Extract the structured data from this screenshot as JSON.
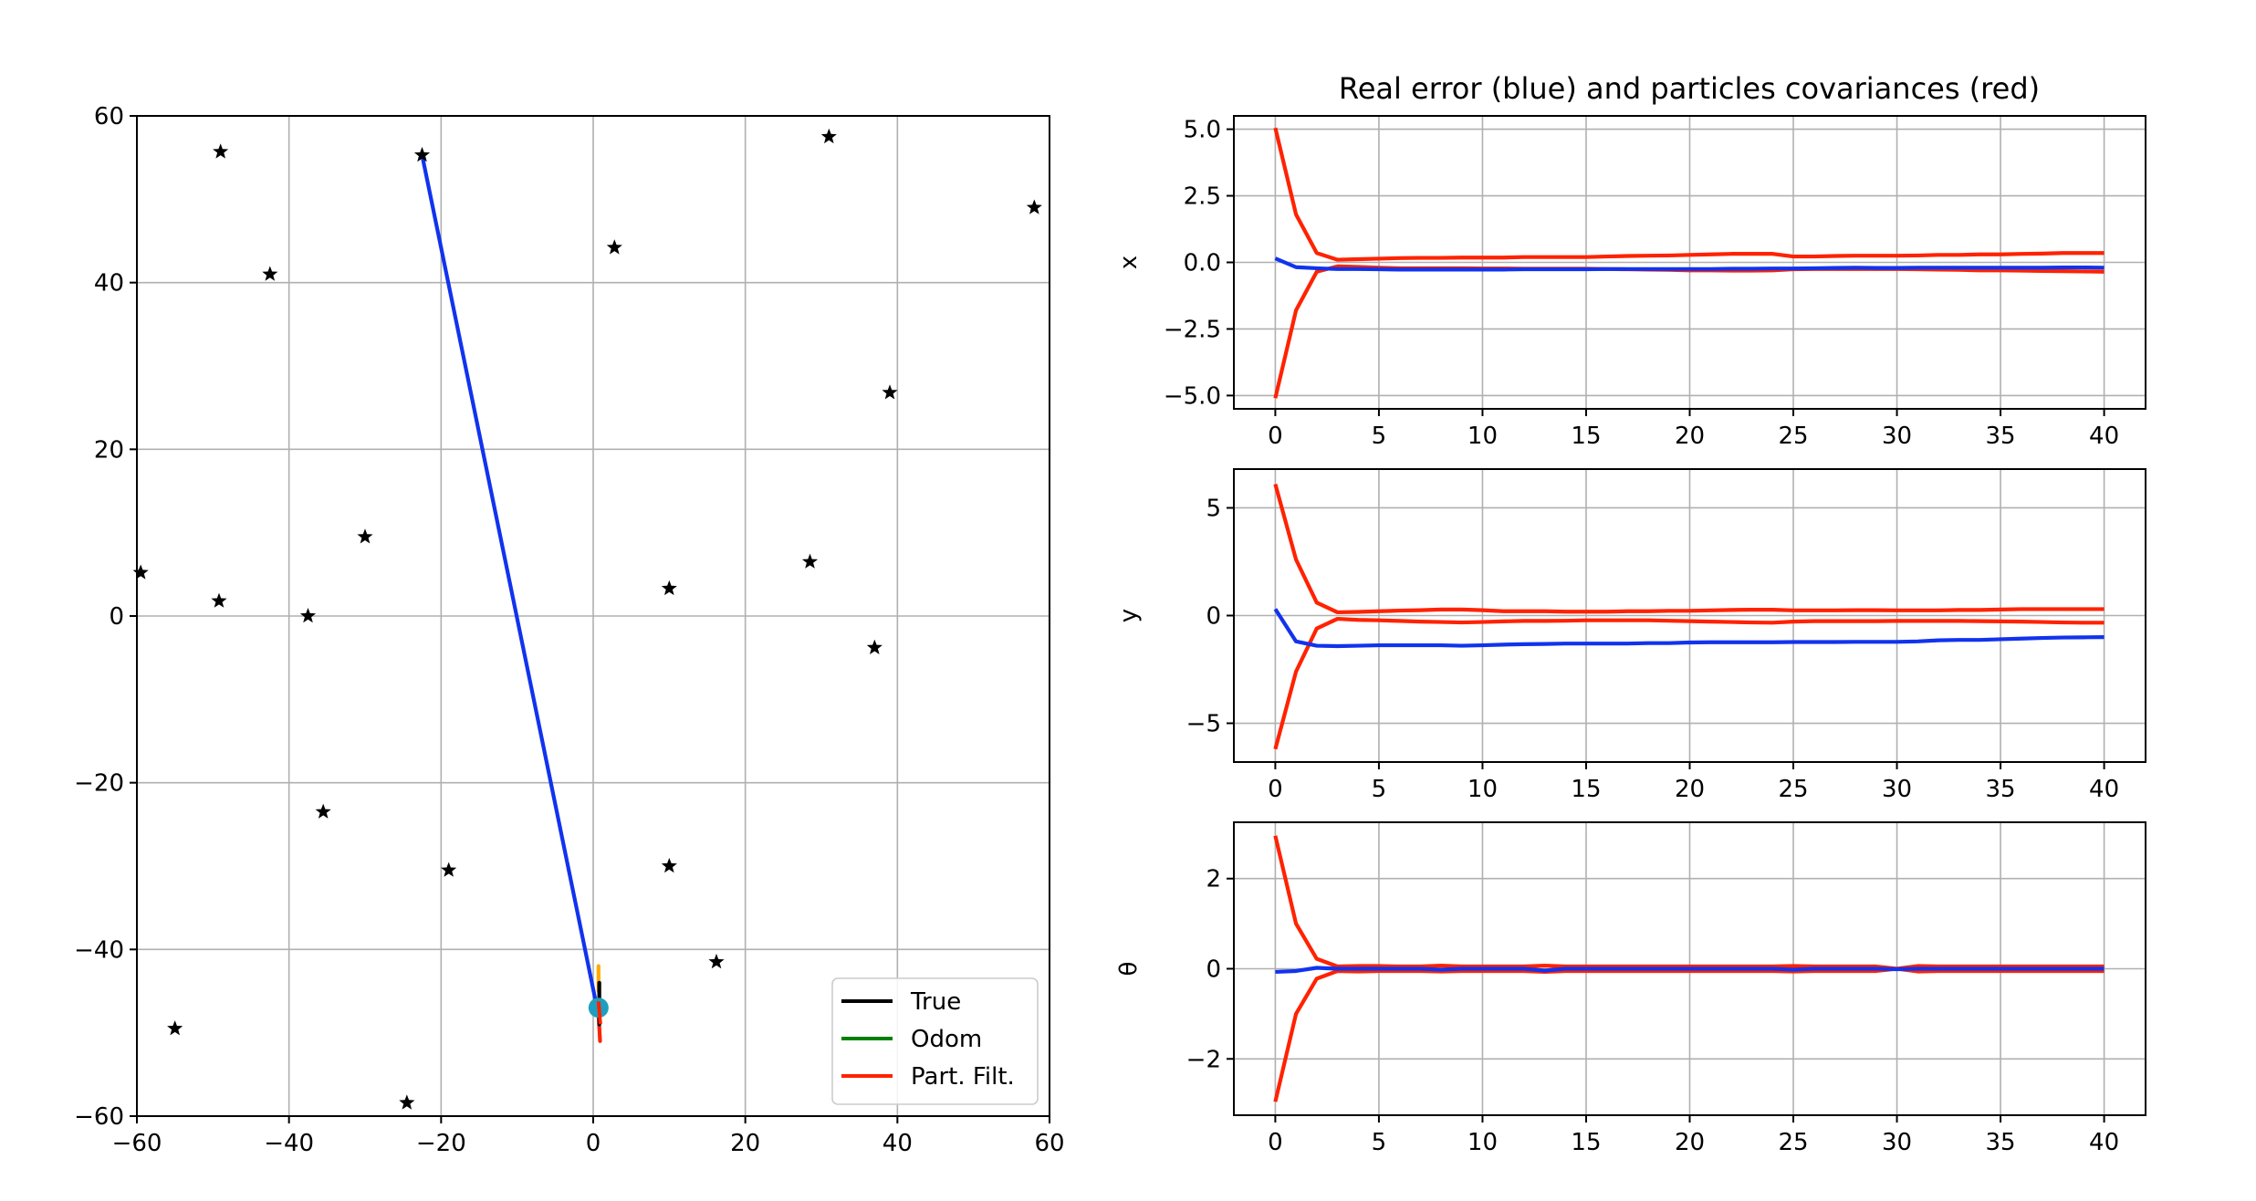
{
  "chart_data": [
    {
      "type": "line",
      "panel": "map",
      "title": "",
      "xlabel": "",
      "ylabel": "",
      "xlim": [
        -60,
        60
      ],
      "ylim": [
        -60,
        60
      ],
      "xticks": [
        -60,
        -40,
        -20,
        0,
        20,
        40,
        60
      ],
      "yticks": [
        -60,
        -40,
        -20,
        0,
        20,
        40,
        60
      ],
      "grid": true,
      "legend": {
        "placement": "lower-right",
        "entries": [
          {
            "label": "True",
            "color": "#000000"
          },
          {
            "label": "Odom",
            "color": "#008000"
          },
          {
            "label": "Part. Filt.",
            "color": "#ff2200"
          }
        ]
      },
      "landmarks": {
        "marker": "star",
        "color": "#000000",
        "points": [
          [
            -49,
            55.7
          ],
          [
            -22.5,
            55.3
          ],
          [
            31,
            57.5
          ],
          [
            58,
            49
          ],
          [
            -42.5,
            41
          ],
          [
            2.8,
            44.2
          ],
          [
            39,
            26.8
          ],
          [
            -30,
            9.5
          ],
          [
            -59.5,
            5.2
          ],
          [
            -49.2,
            1.8
          ],
          [
            -37.5,
            0
          ],
          [
            10,
            3.3
          ],
          [
            28.5,
            6.5
          ],
          [
            37,
            -3.8
          ],
          [
            -35.5,
            -23.5
          ],
          [
            -19,
            -30.5
          ],
          [
            10,
            -30
          ],
          [
            16.2,
            -41.5
          ],
          [
            -55,
            -49.5
          ],
          [
            -24.5,
            -58.4
          ]
        ]
      },
      "series": [
        {
          "color": "#1133ee",
          "points": [
            [
              -22.5,
              55.3
            ],
            [
              0.5,
              -47
            ]
          ]
        },
        {
          "color": "#ffaa00",
          "points": [
            [
              0.7,
              -42
            ],
            [
              0.7,
              -45
            ]
          ]
        },
        {
          "color": "#ff2200",
          "points": [
            [
              0.6,
              -46
            ],
            [
              0.9,
              -51
            ]
          ]
        },
        {
          "color": "#000000",
          "points": [
            [
              0.8,
              -44
            ],
            [
              0.8,
              -49
            ]
          ]
        }
      ],
      "robot": {
        "x": 0.7,
        "y": -47,
        "color": "#1f9fbf"
      }
    },
    {
      "type": "line",
      "panel": "x",
      "title": "Real error (blue) and particles covariances (red)",
      "xlabel": "",
      "ylabel": "x",
      "xlim": [
        -2,
        42
      ],
      "ylim": [
        -5.5,
        5.5
      ],
      "xticks": [
        0,
        5,
        10,
        15,
        20,
        25,
        30,
        35,
        40
      ],
      "yticks": [
        -5.0,
        -2.5,
        0.0,
        2.5,
        5.0
      ],
      "ytick_labels": [
        "−5.0",
        "−2.5",
        "0.0",
        "2.5",
        "5.0"
      ],
      "grid": true,
      "x": [
        0,
        1,
        2,
        3,
        4,
        5,
        6,
        7,
        8,
        9,
        10,
        11,
        12,
        13,
        14,
        15,
        16,
        17,
        18,
        19,
        20,
        21,
        22,
        23,
        24,
        25,
        26,
        27,
        28,
        29,
        30,
        31,
        32,
        33,
        34,
        35,
        36,
        37,
        38,
        39,
        40
      ],
      "series": [
        {
          "color": "#ff2200",
          "values": [
            5.05,
            1.8,
            0.35,
            0.1,
            0.12,
            0.14,
            0.16,
            0.17,
            0.17,
            0.18,
            0.18,
            0.18,
            0.2,
            0.2,
            0.2,
            0.2,
            0.22,
            0.24,
            0.25,
            0.26,
            0.28,
            0.3,
            0.32,
            0.32,
            0.32,
            0.22,
            0.22,
            0.24,
            0.25,
            0.25,
            0.25,
            0.26,
            0.28,
            0.28,
            0.3,
            0.3,
            0.32,
            0.33,
            0.35,
            0.35,
            0.35
          ]
        },
        {
          "color": "#ff2200",
          "values": [
            -5.1,
            -1.8,
            -0.35,
            -0.15,
            -0.17,
            -0.2,
            -0.22,
            -0.22,
            -0.22,
            -0.22,
            -0.23,
            -0.23,
            -0.24,
            -0.24,
            -0.24,
            -0.24,
            -0.25,
            -0.26,
            -0.27,
            -0.28,
            -0.3,
            -0.3,
            -0.31,
            -0.31,
            -0.3,
            -0.26,
            -0.25,
            -0.25,
            -0.25,
            -0.25,
            -0.25,
            -0.26,
            -0.27,
            -0.28,
            -0.3,
            -0.3,
            -0.31,
            -0.32,
            -0.33,
            -0.34,
            -0.35
          ]
        },
        {
          "color": "#1133ee",
          "values": [
            0.15,
            -0.18,
            -0.22,
            -0.25,
            -0.25,
            -0.26,
            -0.27,
            -0.27,
            -0.27,
            -0.27,
            -0.27,
            -0.27,
            -0.26,
            -0.26,
            -0.26,
            -0.26,
            -0.25,
            -0.25,
            -0.25,
            -0.25,
            -0.25,
            -0.25,
            -0.24,
            -0.24,
            -0.23,
            -0.23,
            -0.22,
            -0.21,
            -0.2,
            -0.21,
            -0.21,
            -0.2,
            -0.2,
            -0.2,
            -0.2,
            -0.2,
            -0.2,
            -0.2,
            -0.19,
            -0.19,
            -0.2
          ]
        }
      ]
    },
    {
      "type": "line",
      "panel": "y",
      "title": "",
      "xlabel": "",
      "ylabel": "y",
      "xlim": [
        -2,
        42
      ],
      "ylim": [
        -6.8,
        6.8
      ],
      "xticks": [
        0,
        5,
        10,
        15,
        20,
        25,
        30,
        35,
        40
      ],
      "yticks": [
        -5,
        0,
        5
      ],
      "ytick_labels": [
        "−5",
        "0",
        "5"
      ],
      "grid": true,
      "x": [
        0,
        1,
        2,
        3,
        4,
        5,
        6,
        7,
        8,
        9,
        10,
        11,
        12,
        13,
        14,
        15,
        16,
        17,
        18,
        19,
        20,
        21,
        22,
        23,
        24,
        25,
        26,
        27,
        28,
        29,
        30,
        31,
        32,
        33,
        34,
        35,
        36,
        37,
        38,
        39,
        40
      ],
      "series": [
        {
          "color": "#ff2200",
          "values": [
            6.1,
            2.6,
            0.6,
            0.15,
            0.17,
            0.2,
            0.23,
            0.25,
            0.28,
            0.28,
            0.25,
            0.2,
            0.2,
            0.2,
            0.18,
            0.18,
            0.18,
            0.2,
            0.2,
            0.22,
            0.22,
            0.24,
            0.26,
            0.27,
            0.27,
            0.24,
            0.24,
            0.24,
            0.25,
            0.25,
            0.24,
            0.24,
            0.24,
            0.26,
            0.26,
            0.28,
            0.3,
            0.3,
            0.3,
            0.3,
            0.3
          ]
        },
        {
          "color": "#ff2200",
          "values": [
            -6.2,
            -2.6,
            -0.6,
            -0.15,
            -0.2,
            -0.22,
            -0.25,
            -0.28,
            -0.3,
            -0.32,
            -0.3,
            -0.27,
            -0.25,
            -0.25,
            -0.24,
            -0.22,
            -0.22,
            -0.22,
            -0.22,
            -0.24,
            -0.26,
            -0.28,
            -0.3,
            -0.32,
            -0.33,
            -0.28,
            -0.26,
            -0.26,
            -0.26,
            -0.26,
            -0.25,
            -0.25,
            -0.25,
            -0.25,
            -0.26,
            -0.27,
            -0.28,
            -0.3,
            -0.32,
            -0.33,
            -0.33
          ]
        },
        {
          "color": "#1133ee",
          "values": [
            0.3,
            -1.2,
            -1.4,
            -1.42,
            -1.4,
            -1.38,
            -1.38,
            -1.38,
            -1.38,
            -1.4,
            -1.38,
            -1.35,
            -1.33,
            -1.32,
            -1.3,
            -1.3,
            -1.3,
            -1.3,
            -1.28,
            -1.28,
            -1.25,
            -1.24,
            -1.24,
            -1.24,
            -1.24,
            -1.23,
            -1.23,
            -1.23,
            -1.22,
            -1.22,
            -1.22,
            -1.2,
            -1.15,
            -1.13,
            -1.13,
            -1.1,
            -1.07,
            -1.04,
            -1.02,
            -1.01,
            -1.0
          ]
        }
      ]
    },
    {
      "type": "line",
      "panel": "theta",
      "title": "",
      "xlabel": "",
      "ylabel": "θ",
      "xlim": [
        -2,
        42
      ],
      "ylim": [
        -3.25,
        3.25
      ],
      "xticks": [
        0,
        5,
        10,
        15,
        20,
        25,
        30,
        35,
        40
      ],
      "yticks": [
        -2,
        0,
        2
      ],
      "ytick_labels": [
        "−2",
        "0",
        "2"
      ],
      "grid": true,
      "x": [
        0,
        1,
        2,
        3,
        4,
        5,
        6,
        7,
        8,
        9,
        10,
        11,
        12,
        13,
        14,
        15,
        16,
        17,
        18,
        19,
        20,
        21,
        22,
        23,
        24,
        25,
        26,
        27,
        28,
        29,
        30,
        31,
        32,
        33,
        34,
        35,
        36,
        37,
        38,
        39,
        40
      ],
      "series": [
        {
          "color": "#ff2200",
          "values": [
            2.95,
            1.0,
            0.22,
            0.05,
            0.06,
            0.06,
            0.05,
            0.05,
            0.07,
            0.05,
            0.05,
            0.05,
            0.05,
            0.07,
            0.05,
            0.05,
            0.05,
            0.05,
            0.05,
            0.05,
            0.05,
            0.05,
            0.05,
            0.05,
            0.05,
            0.06,
            0.05,
            0.05,
            0.05,
            0.05,
            0.0,
            0.06,
            0.05,
            0.05,
            0.05,
            0.05,
            0.05,
            0.05,
            0.05,
            0.05,
            0.05
          ]
        },
        {
          "color": "#ff2200",
          "values": [
            -2.95,
            -1.0,
            -0.22,
            -0.05,
            -0.06,
            -0.05,
            -0.05,
            -0.05,
            -0.06,
            -0.05,
            -0.05,
            -0.05,
            -0.05,
            -0.07,
            -0.05,
            -0.05,
            -0.05,
            -0.05,
            -0.05,
            -0.05,
            -0.05,
            -0.05,
            -0.05,
            -0.05,
            -0.05,
            -0.06,
            -0.05,
            -0.05,
            -0.05,
            -0.05,
            0.0,
            -0.06,
            -0.05,
            -0.05,
            -0.05,
            -0.05,
            -0.05,
            -0.05,
            -0.05,
            -0.05,
            -0.05
          ]
        },
        {
          "color": "#1133ee",
          "values": [
            -0.07,
            -0.05,
            0.02,
            0.0,
            0.0,
            0.0,
            0.0,
            0.0,
            -0.02,
            0.0,
            0.0,
            0.0,
            0.0,
            -0.04,
            0.0,
            0.0,
            0.0,
            0.0,
            0.0,
            0.0,
            0.0,
            0.0,
            0.0,
            0.0,
            0.0,
            -0.02,
            0.0,
            0.0,
            0.0,
            0.0,
            -0.01,
            0.0,
            0.0,
            0.0,
            0.0,
            0.0,
            0.0,
            0.0,
            0.0,
            0.0,
            0.0
          ]
        }
      ]
    }
  ]
}
